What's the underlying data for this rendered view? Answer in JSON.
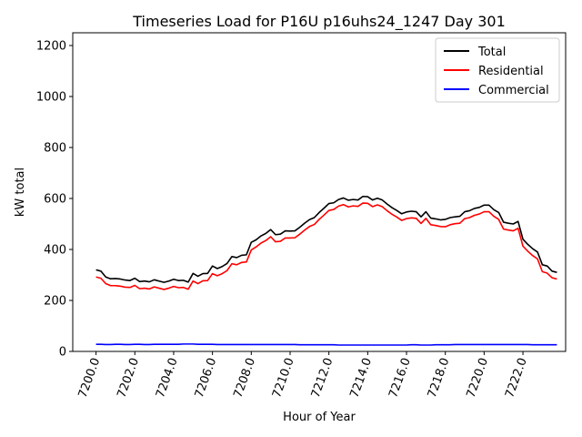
{
  "chart_data": {
    "type": "line",
    "title": "Timeseries Load for P16U p16uhs24_1247  Day 301",
    "xlabel": "Hour of Year",
    "ylabel": "kW total",
    "xlim": [
      7198.8,
      7224.2
    ],
    "ylim": [
      0,
      1250
    ],
    "xticks": [
      7200,
      7202,
      7204,
      7206,
      7208,
      7210,
      7212,
      7214,
      7216,
      7218,
      7220,
      7222
    ],
    "xtick_labels": [
      "7200.0",
      "7202.0",
      "7204.0",
      "7206.0",
      "7208.0",
      "7210.0",
      "7212.0",
      "7214.0",
      "7216.0",
      "7218.0",
      "7220.0",
      "7222.0"
    ],
    "yticks": [
      0,
      200,
      400,
      600,
      800,
      1000,
      1200
    ],
    "ytick_labels": [
      "0",
      "200",
      "400",
      "600",
      "800",
      "1000",
      "1200"
    ],
    "legend_position": "top-right",
    "x_start": 7200,
    "x_step": 0.25,
    "series": [
      {
        "name": "Total",
        "color": "#000000",
        "values": [
          320,
          315,
          292,
          285,
          286,
          284,
          280,
          278,
          287,
          274,
          276,
          273,
          281,
          276,
          271,
          276,
          283,
          278,
          279,
          272,
          306,
          295,
          305,
          306,
          335,
          325,
          333,
          345,
          372,
          368,
          377,
          379,
          428,
          438,
          453,
          463,
          478,
          458,
          460,
          473,
          472,
          473,
          487,
          503,
          517,
          525,
          545,
          562,
          580,
          583,
          596,
          602,
          593,
          596,
          594,
          608,
          607,
          594,
          601,
          594,
          578,
          564,
          553,
          540,
          547,
          550,
          548,
          528,
          548,
          523,
          520,
          516,
          518,
          525,
          528,
          530,
          548,
          552,
          561,
          565,
          574,
          574,
          556,
          545,
          507,
          503,
          500,
          510,
          440,
          420,
          403,
          390,
          340,
          335,
          315,
          310
        ]
      },
      {
        "name": "Residential",
        "color": "#ff0000",
        "values": [
          292,
          287,
          266,
          258,
          258,
          256,
          252,
          251,
          259,
          246,
          248,
          245,
          253,
          248,
          243,
          248,
          255,
          250,
          251,
          244,
          276,
          266,
          277,
          278,
          305,
          297,
          305,
          317,
          344,
          340,
          349,
          351,
          398,
          410,
          425,
          435,
          450,
          430,
          432,
          445,
          445,
          446,
          460,
          476,
          490,
          498,
          518,
          535,
          553,
          557,
          570,
          576,
          567,
          571,
          569,
          582,
          581,
          568,
          575,
          568,
          552,
          538,
          527,
          514,
          521,
          524,
          522,
          502,
          522,
          497,
          494,
          490,
          489,
          497,
          501,
          503,
          521,
          525,
          534,
          539,
          548,
          548,
          530,
          518,
          480,
          476,
          473,
          483,
          413,
          393,
          376,
          363,
          313,
          307,
          289,
          284
        ]
      },
      {
        "name": "Commercial",
        "color": "#0000ff",
        "values": [
          28,
          28,
          27,
          27,
          28,
          28,
          27,
          27,
          28,
          28,
          27,
          27,
          28,
          28,
          28,
          28,
          28,
          28,
          29,
          29,
          29,
          28,
          28,
          28,
          28,
          27,
          27,
          27,
          27,
          27,
          27,
          27,
          27,
          27,
          27,
          27,
          27,
          27,
          27,
          27,
          27,
          27,
          26,
          26,
          26,
          26,
          26,
          26,
          26,
          26,
          25,
          25,
          25,
          25,
          25,
          25,
          25,
          25,
          25,
          25,
          25,
          25,
          25,
          25,
          25,
          26,
          26,
          25,
          25,
          25,
          26,
          26,
          26,
          26,
          27,
          27,
          27,
          27,
          27,
          27,
          27,
          27,
          27,
          27,
          27,
          27,
          27,
          27,
          27,
          27,
          26,
          26,
          26,
          26,
          26,
          26
        ]
      }
    ]
  }
}
